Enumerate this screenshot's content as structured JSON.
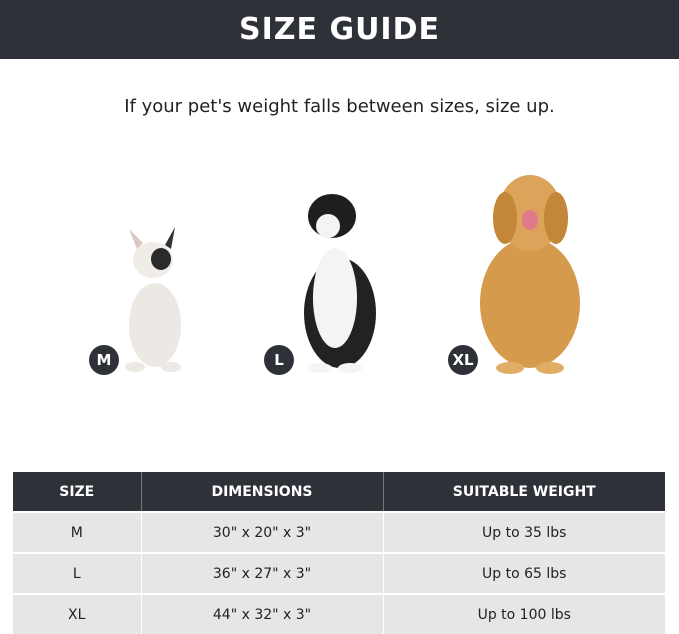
{
  "banner": {
    "title": "SIZE GUIDE"
  },
  "subtitle": "If your pet's weight falls between sizes, size up.",
  "dogs": [
    {
      "badge": "M",
      "icon": "french-bulldog"
    },
    {
      "badge": "L",
      "icon": "border-collie"
    },
    {
      "badge": "XL",
      "icon": "golden-retriever"
    }
  ],
  "table": {
    "headers": [
      "SIZE",
      "DIMENSIONS",
      "SUITABLE WEIGHT"
    ],
    "rows": [
      [
        "M",
        "30\" x 20\" x 3\"",
        "Up to 35 lbs"
      ],
      [
        "L",
        "36\" x 27\" x 3\"",
        "Up to 65 lbs"
      ],
      [
        "XL",
        "44\" x 32\" x 3\"",
        "Up to 100 lbs"
      ]
    ]
  },
  "colors": {
    "dark": "#2f3138",
    "row": "#e6e6e6"
  }
}
